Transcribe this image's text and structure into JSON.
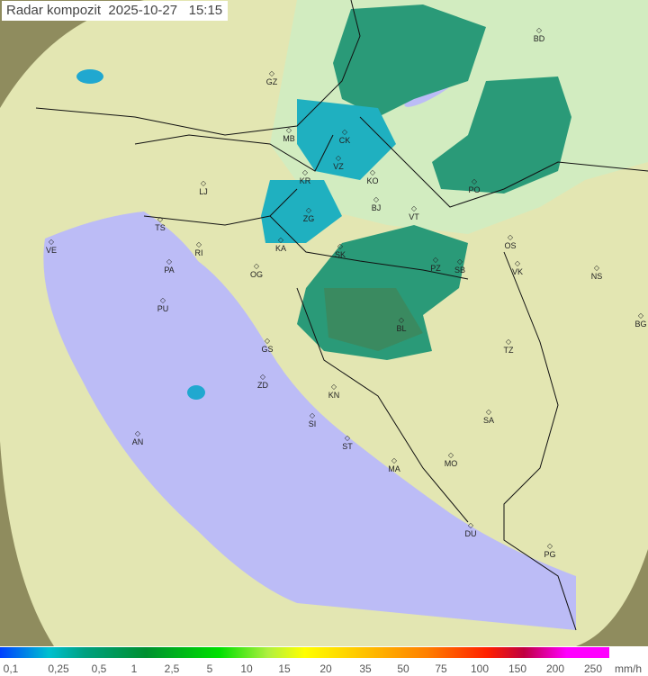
{
  "title": "Radar kompozit  2025-10-27   15:15",
  "legend": {
    "labels": [
      "0,1",
      "0,25",
      "0,5",
      "1",
      "2,5",
      "5",
      "10",
      "15",
      "20",
      "35",
      "50",
      "75",
      "100",
      "150",
      "200",
      "250"
    ],
    "unit": "mm/h"
  },
  "colors": {
    "sea": "#babaf6",
    "land": "#e6e8b0",
    "radar_range": "#d4ecc0",
    "outside": "#8a8a5a",
    "rain_light": "#20a0d0",
    "rain_mid": "#2a9070"
  },
  "cities": [
    "BD",
    "GZ",
    "MB",
    "CK",
    "VZ",
    "KR",
    "KO",
    "LJ",
    "BJ",
    "VT",
    "PO",
    "ZG",
    "TS",
    "VE",
    "KA",
    "SK",
    "OS",
    "RI",
    "PA",
    "OG",
    "PZ",
    "SB",
    "VK",
    "NS",
    "PU",
    "BL",
    "BG",
    "GS",
    "TZ",
    "ZD",
    "KN",
    "SA",
    "SI",
    "AN",
    "ST",
    "MA",
    "MO",
    "DU",
    "PG"
  ]
}
